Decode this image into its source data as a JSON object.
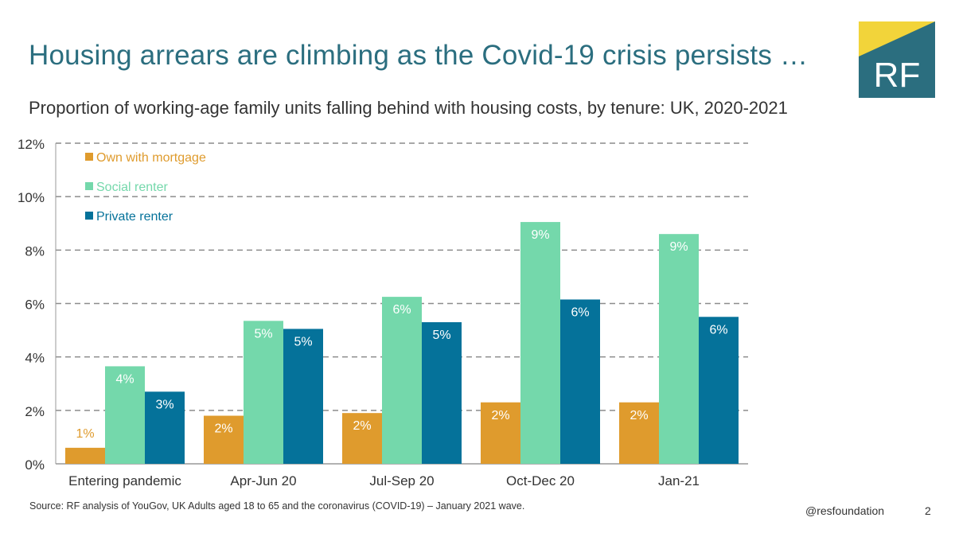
{
  "title": "Housing arrears are climbing as the Covid-19 crisis persists …",
  "subtitle": "Proportion of working-age family units falling behind with housing costs, by tenure: UK, 2020-2021",
  "logo": {
    "text": "RF",
    "colors": {
      "yellow": "#f2d43a",
      "teal": "#2b6e7f"
    }
  },
  "source": "Source: RF analysis of YouGov, UK Adults aged 18 to 65 and the coronavirus (COVID-19) – January 2021 wave.",
  "handle": "@resfoundation",
  "page_number": "2",
  "chart_data": {
    "type": "bar",
    "categories": [
      "Entering pandemic",
      "Apr-Jun 20",
      "Jul-Sep 20",
      "Oct-Dec 20",
      "Jan-21"
    ],
    "series": [
      {
        "name": "Own with mortgage",
        "color": "#df9b2d",
        "values": [
          0.6,
          1.8,
          1.9,
          2.3,
          2.3
        ],
        "labels": [
          "1%",
          "2%",
          "2%",
          "2%",
          "2%"
        ]
      },
      {
        "name": "Social renter",
        "color": "#74d8ab",
        "values": [
          3.65,
          5.35,
          6.25,
          9.05,
          8.6
        ],
        "labels": [
          "4%",
          "5%",
          "6%",
          "9%",
          "9%"
        ]
      },
      {
        "name": "Private renter",
        "color": "#05729a",
        "values": [
          2.7,
          5.05,
          5.3,
          6.15,
          5.5
        ],
        "labels": [
          "3%",
          "5%",
          "5%",
          "6%",
          "6%"
        ]
      }
    ],
    "yticks": [
      "0%",
      "2%",
      "4%",
      "6%",
      "8%",
      "10%",
      "12%"
    ],
    "ylim": [
      0,
      12
    ],
    "grid": true,
    "legend": "top-left"
  }
}
